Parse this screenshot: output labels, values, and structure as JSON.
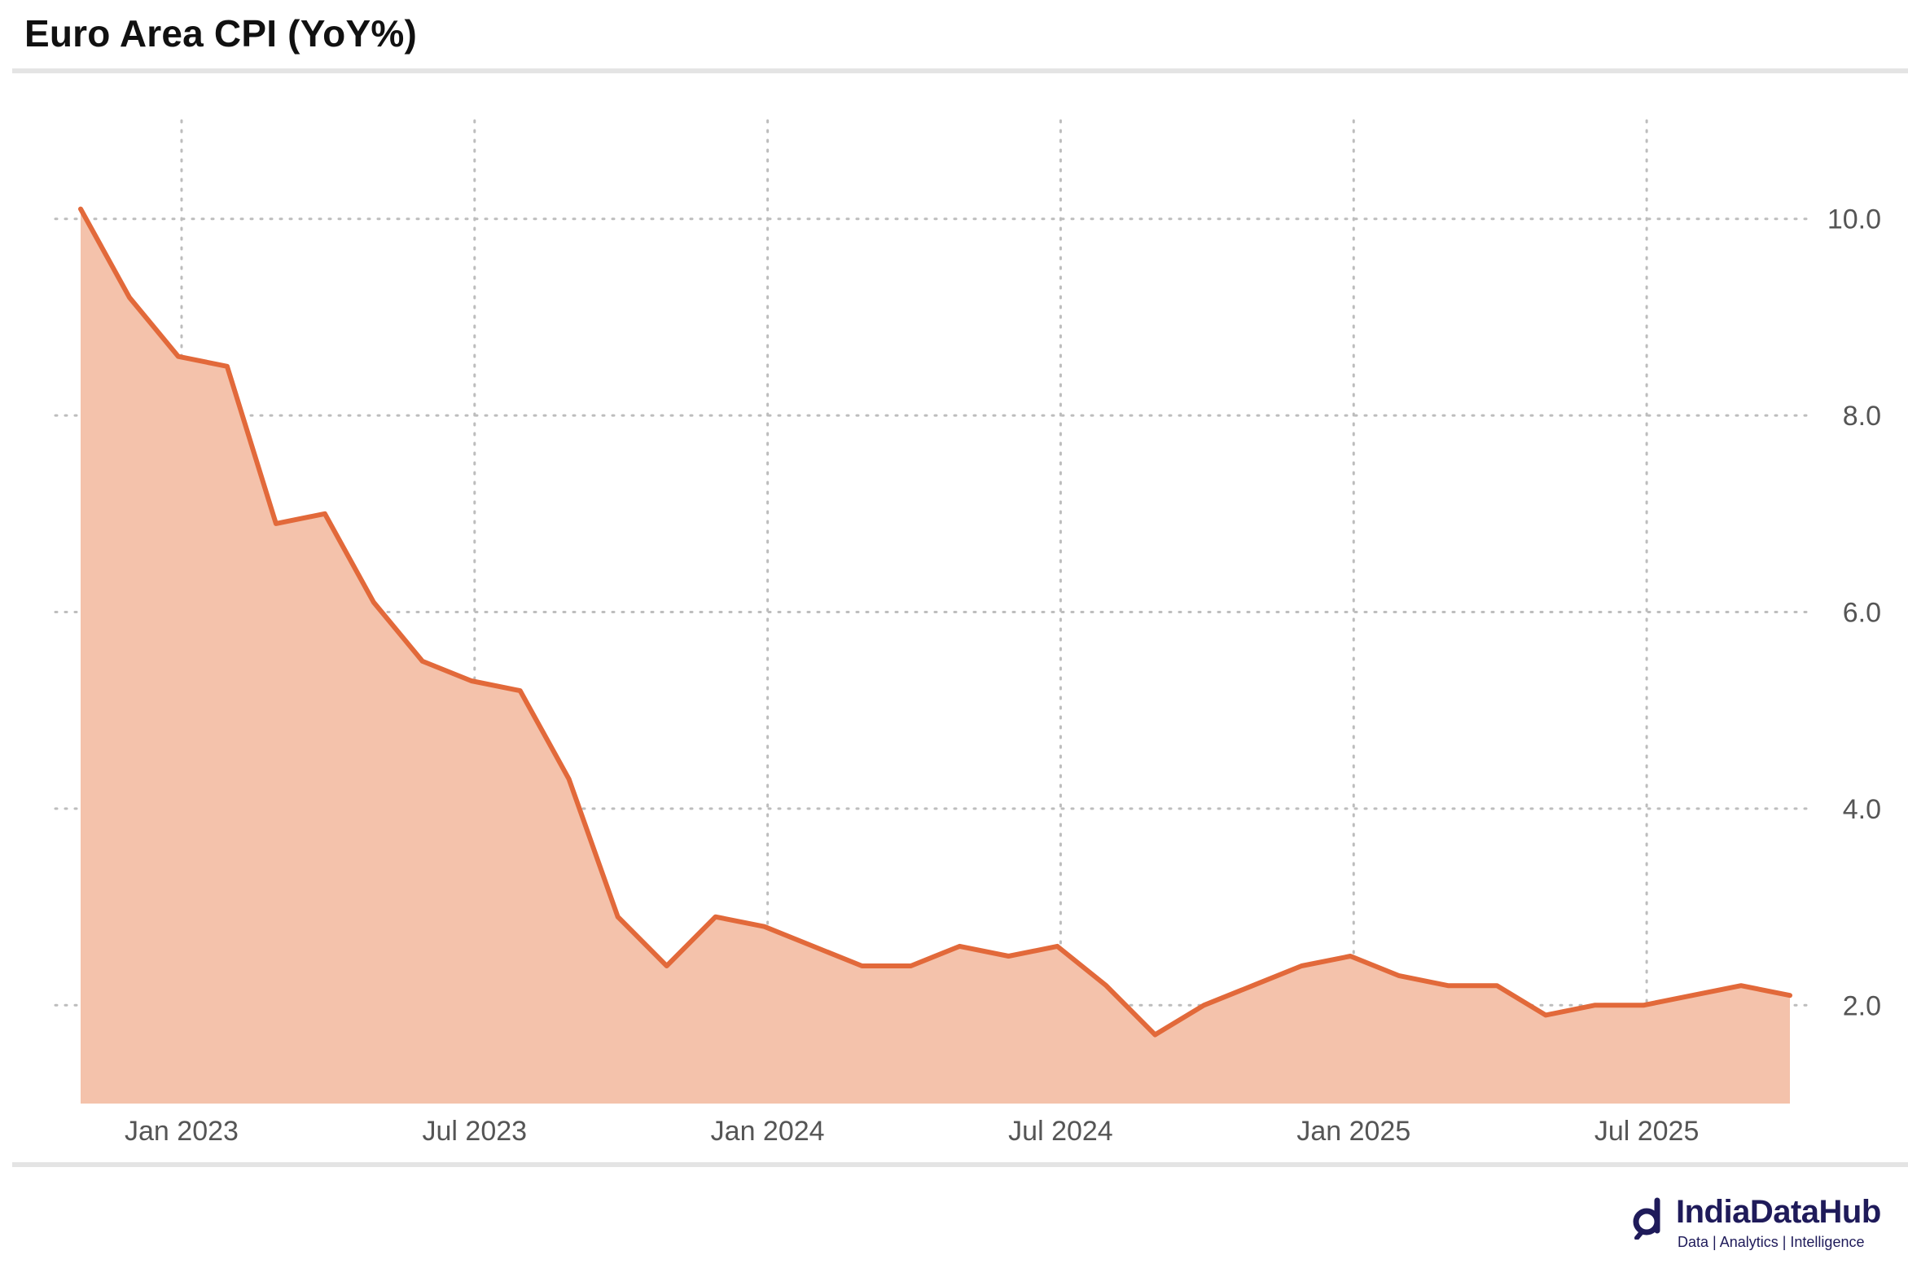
{
  "title": "Euro Area CPI (YoY%)",
  "logo": {
    "name": "IndiaDataHub",
    "tagline": "Data | Analytics | Intelligence"
  },
  "colors": {
    "line": "#e2693a",
    "area": "#f4c2ab",
    "grid": "#bdbdbd",
    "rule": "#e4e4e4",
    "brand": "#1f1b5a"
  },
  "chart_data": {
    "type": "area",
    "x": [
      "2022-12",
      "2023-01",
      "2023-02",
      "2023-03",
      "2023-04",
      "2023-05",
      "2023-06",
      "2023-07",
      "2023-08",
      "2023-09",
      "2023-10",
      "2023-11",
      "2023-12",
      "2024-01",
      "2024-02",
      "2024-03",
      "2024-04",
      "2024-05",
      "2024-06",
      "2024-07",
      "2024-08",
      "2024-09",
      "2024-10",
      "2024-11",
      "2024-12",
      "2025-01",
      "2025-02",
      "2025-03",
      "2025-04",
      "2025-05",
      "2025-06",
      "2025-07",
      "2025-08",
      "2025-09",
      "2025-10",
      "2025-11"
    ],
    "series": [
      {
        "values": [
          10.1,
          9.2,
          8.6,
          8.5,
          6.9,
          7.0,
          6.1,
          5.5,
          5.3,
          5.2,
          4.3,
          2.9,
          2.4,
          2.9,
          2.8,
          2.6,
          2.4,
          2.4,
          2.6,
          2.5,
          2.6,
          2.2,
          1.7,
          2.0,
          2.2,
          2.4,
          2.5,
          2.3,
          2.2,
          2.2,
          1.9,
          2.0,
          2.0,
          2.1,
          2.2,
          2.1
        ]
      }
    ],
    "x_ticks": [
      {
        "date": "2023-01",
        "label": "Jan 2023"
      },
      {
        "date": "2023-07",
        "label": "Jul 2023"
      },
      {
        "date": "2024-01",
        "label": "Jan 2024"
      },
      {
        "date": "2024-07",
        "label": "Jul 2024"
      },
      {
        "date": "2025-01",
        "label": "Jan 2025"
      },
      {
        "date": "2025-07",
        "label": "Jul 2025"
      }
    ],
    "y_ticks": [
      "2.0",
      "4.0",
      "6.0",
      "8.0",
      "10.0"
    ],
    "ylim": [
      1.0,
      11.0
    ],
    "y_axis_side": "right",
    "grid": "dotted",
    "legend": "none"
  }
}
